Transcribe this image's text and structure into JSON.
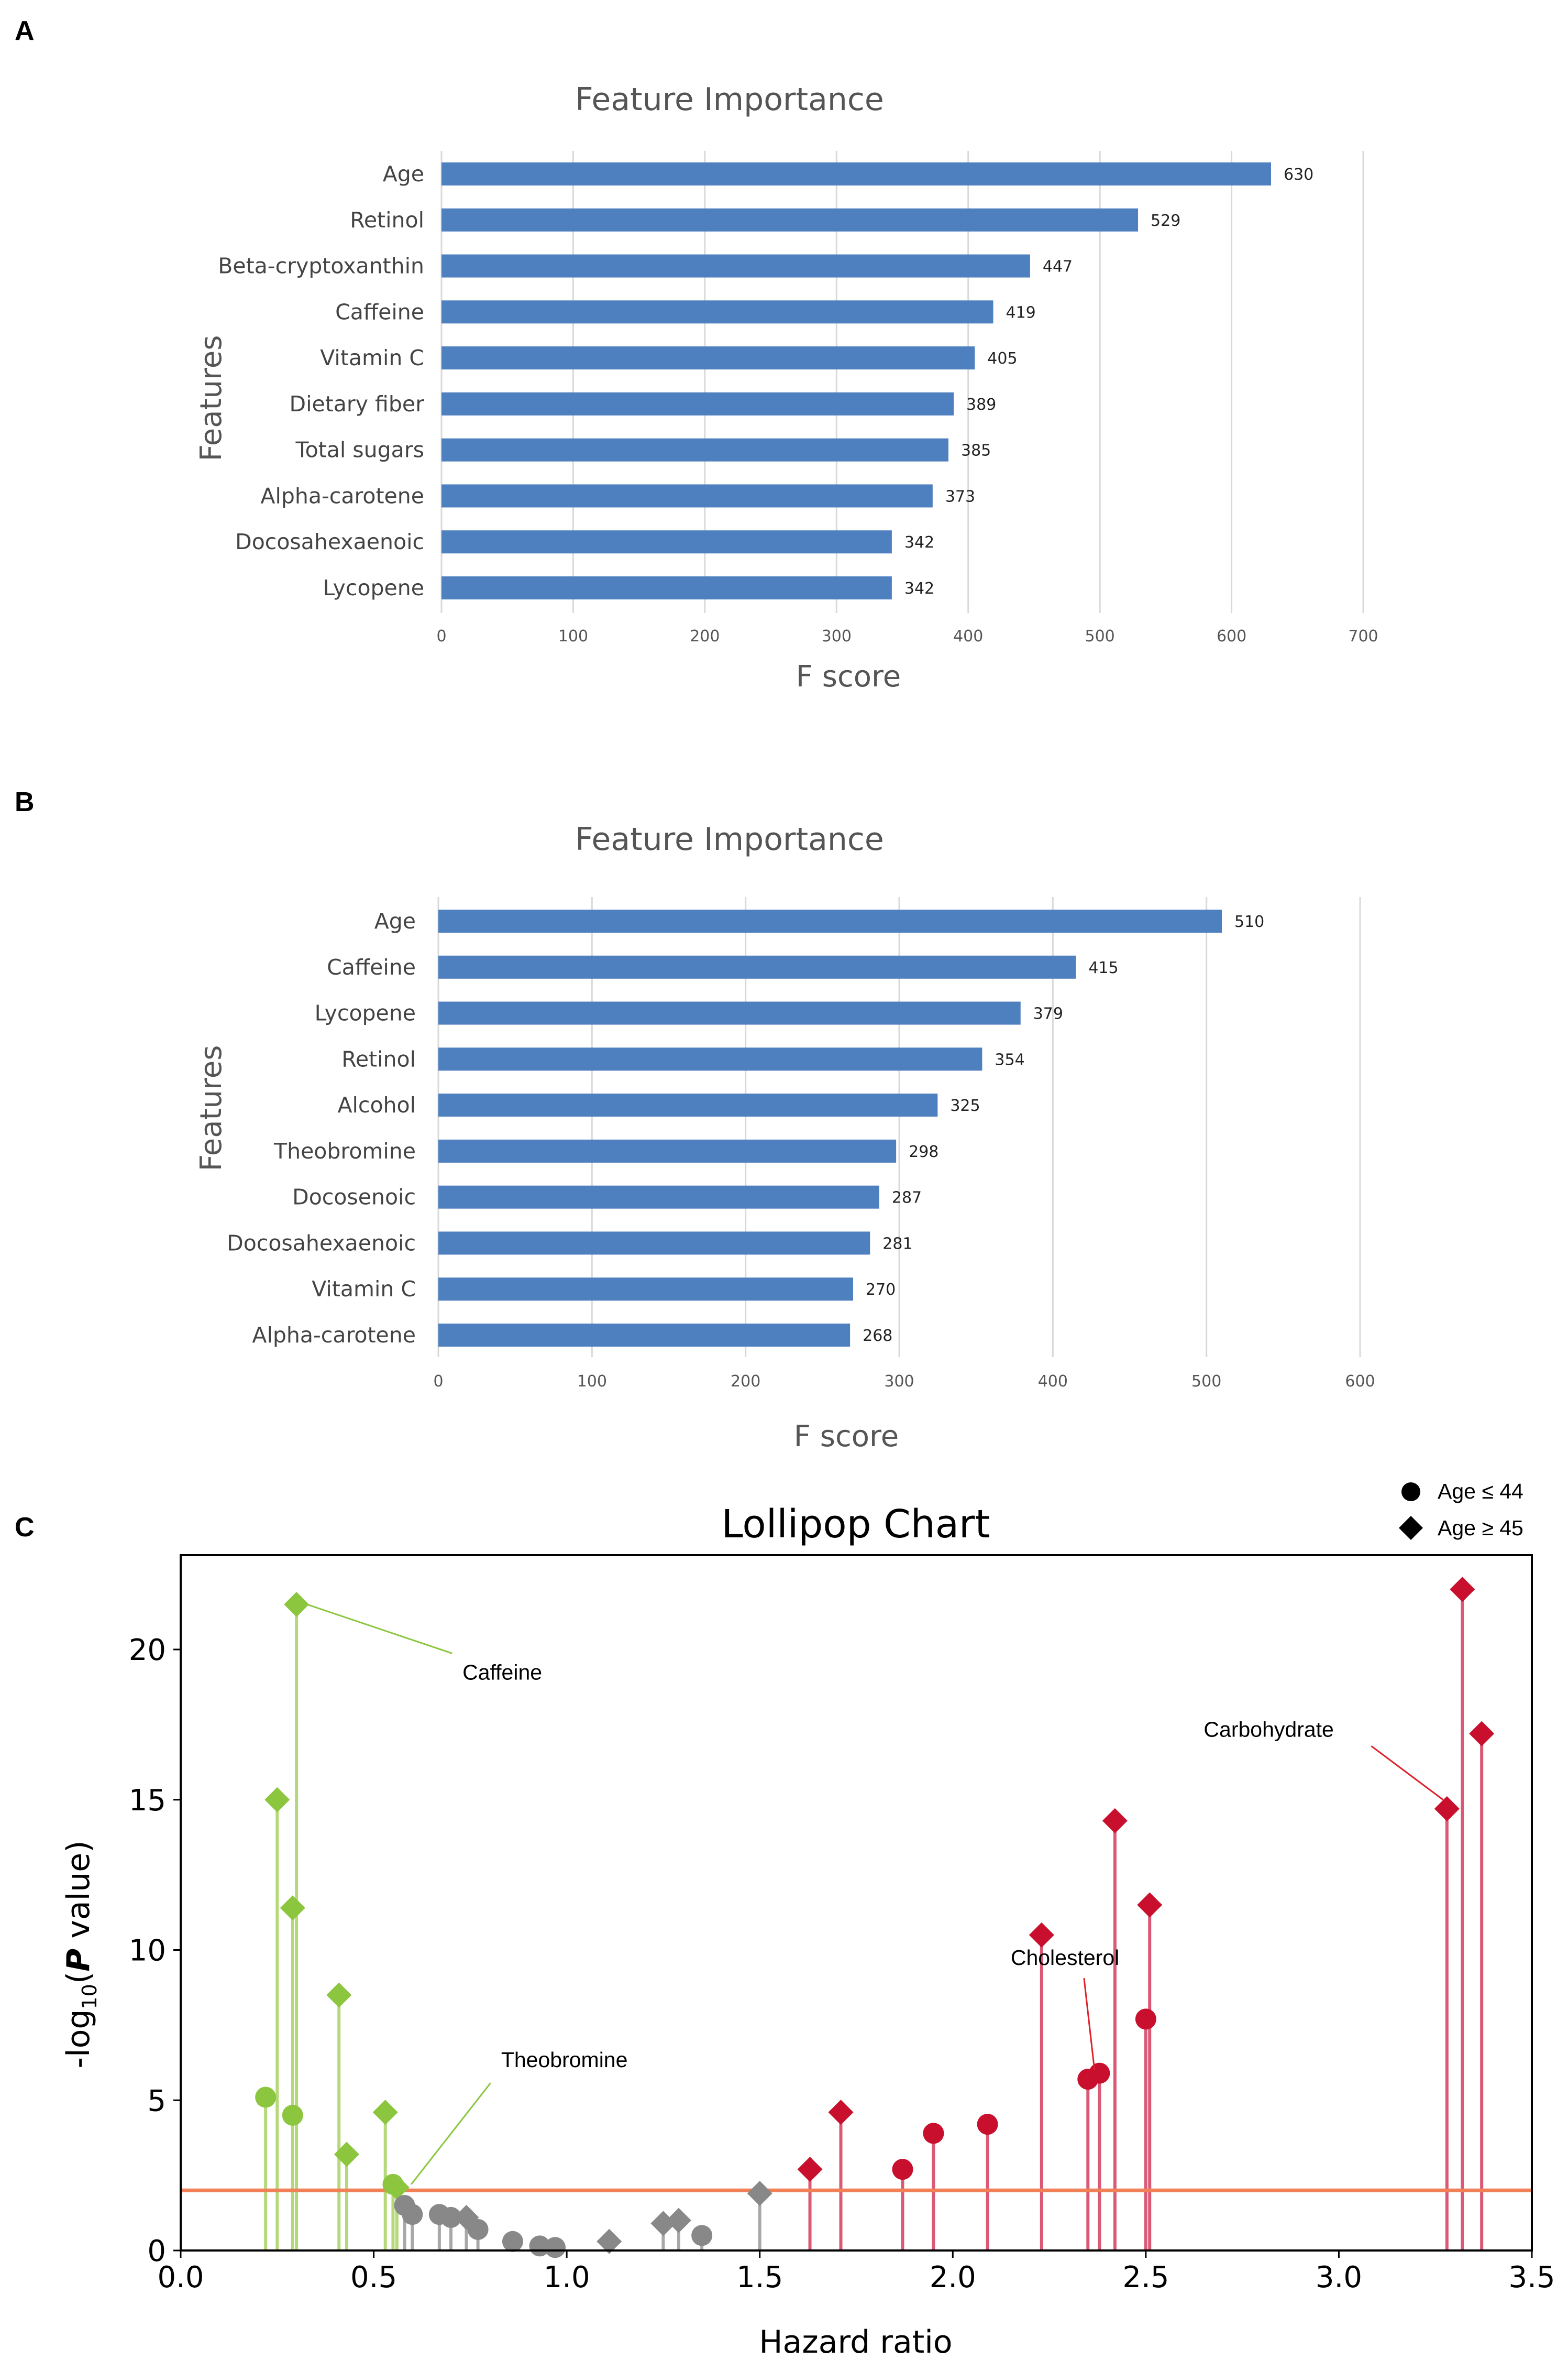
{
  "chart_data": [
    {
      "panel": "A",
      "type": "bar",
      "orientation": "horizontal",
      "title": "Feature Importance",
      "xlabel": "F score",
      "ylabel": "Features",
      "categories": [
        "Age",
        "Retinol",
        "Beta-cryptoxanthin",
        "Caffeine",
        "Vitamin C",
        "Dietary fiber",
        "Total sugars",
        "Alpha-carotene",
        "Docosahexaenoic",
        "Lycopene"
      ],
      "values": [
        630,
        529,
        447,
        419,
        405,
        389,
        385,
        373,
        342,
        342
      ],
      "value_labels": [
        "630",
        "529",
        "447",
        "419",
        "405",
        "389",
        "385",
        "373",
        "342",
        "342"
      ],
      "xlim": [
        0,
        700
      ],
      "xticks": [
        "0",
        "100",
        "200",
        "300",
        "400",
        "500",
        "600",
        "700"
      ],
      "grid": "vertical",
      "color": "#4E7FBF"
    },
    {
      "panel": "B",
      "type": "bar",
      "orientation": "horizontal",
      "title": "Feature Importance",
      "xlabel": "F score",
      "ylabel": "Features",
      "categories": [
        "Age",
        "Caffeine",
        "Lycopene",
        "Retinol",
        "Alcohol",
        "Theobromine",
        "Docosenoic",
        "Docosahexaenoic",
        "Vitamin C",
        "Alpha-carotene"
      ],
      "values": [
        510,
        415,
        379,
        354,
        325,
        298,
        287,
        281,
        270,
        268
      ],
      "value_labels": [
        "510",
        "415",
        "379",
        "354",
        "325",
        "298",
        "287",
        "281",
        "270",
        "268"
      ],
      "xlim": [
        0,
        600
      ],
      "xticks": [
        "0",
        "100",
        "200",
        "300",
        "400",
        "500",
        "600"
      ],
      "grid": "vertical",
      "color": "#4E7FBF"
    },
    {
      "panel": "C",
      "type": "scatter",
      "subtype": "lollipop",
      "title": "Lollipop Chart",
      "xlabel": "Hazard ratio",
      "ylabel_parts": [
        "-log",
        "10",
        "(",
        "P",
        " value)"
      ],
      "xlim": [
        0,
        3.5
      ],
      "ylim": [
        0,
        23
      ],
      "xticks": [
        "0.0",
        "0.5",
        "1.0",
        "1.5",
        "2.0",
        "2.5",
        "3.0",
        "3.5"
      ],
      "yticks": [
        "0",
        "5",
        "10",
        "15",
        "20"
      ],
      "threshold_y": 2.0,
      "threshold_color": "#F08058",
      "legend": [
        {
          "label": "Age ≤ 44",
          "marker": "circle"
        },
        {
          "label": "Age ≥ 45",
          "marker": "diamond"
        }
      ],
      "legend_position": "above-right",
      "colors": {
        "protective": "#8CC63F",
        "protective_stem": "#B5D97A",
        "neutral": "#888888",
        "neutral_stem": "#A8A8A8",
        "risk": "#C8102E",
        "risk_stem": "#DA5A76"
      },
      "points": [
        {
          "x": 0.22,
          "y": 5.1,
          "marker": "circle",
          "group": "protective"
        },
        {
          "x": 0.25,
          "y": 15.0,
          "marker": "diamond",
          "group": "protective"
        },
        {
          "x": 0.29,
          "y": 4.5,
          "marker": "circle",
          "group": "protective"
        },
        {
          "x": 0.29,
          "y": 11.4,
          "marker": "diamond",
          "group": "protective"
        },
        {
          "x": 0.3,
          "y": 21.5,
          "marker": "diamond",
          "group": "protective"
        },
        {
          "x": 0.41,
          "y": 8.5,
          "marker": "diamond",
          "group": "protective"
        },
        {
          "x": 0.43,
          "y": 3.2,
          "marker": "diamond",
          "group": "protective"
        },
        {
          "x": 0.53,
          "y": 4.6,
          "marker": "diamond",
          "group": "protective"
        },
        {
          "x": 0.55,
          "y": 2.2,
          "marker": "circle",
          "group": "protective"
        },
        {
          "x": 0.56,
          "y": 2.1,
          "marker": "diamond",
          "group": "protective"
        },
        {
          "x": 0.58,
          "y": 1.5,
          "marker": "circle",
          "group": "neutral"
        },
        {
          "x": 0.6,
          "y": 1.2,
          "marker": "circle",
          "group": "neutral"
        },
        {
          "x": 0.67,
          "y": 1.2,
          "marker": "circle",
          "group": "neutral"
        },
        {
          "x": 0.7,
          "y": 1.1,
          "marker": "circle",
          "group": "neutral"
        },
        {
          "x": 0.74,
          "y": 1.1,
          "marker": "diamond",
          "group": "neutral"
        },
        {
          "x": 0.77,
          "y": 0.7,
          "marker": "circle",
          "group": "neutral"
        },
        {
          "x": 0.86,
          "y": 0.3,
          "marker": "circle",
          "group": "neutral"
        },
        {
          "x": 0.93,
          "y": 0.15,
          "marker": "circle",
          "group": "neutral"
        },
        {
          "x": 0.97,
          "y": 0.1,
          "marker": "circle",
          "group": "neutral"
        },
        {
          "x": 1.11,
          "y": 0.3,
          "marker": "diamond",
          "group": "neutral"
        },
        {
          "x": 1.25,
          "y": 0.9,
          "marker": "diamond",
          "group": "neutral"
        },
        {
          "x": 1.29,
          "y": 1.0,
          "marker": "diamond",
          "group": "neutral"
        },
        {
          "x": 1.35,
          "y": 0.5,
          "marker": "circle",
          "group": "neutral"
        },
        {
          "x": 1.5,
          "y": 1.9,
          "marker": "diamond",
          "group": "neutral"
        },
        {
          "x": 1.63,
          "y": 2.7,
          "marker": "diamond",
          "group": "risk"
        },
        {
          "x": 1.71,
          "y": 4.6,
          "marker": "diamond",
          "group": "risk"
        },
        {
          "x": 1.87,
          "y": 2.7,
          "marker": "circle",
          "group": "risk"
        },
        {
          "x": 1.95,
          "y": 3.9,
          "marker": "circle",
          "group": "risk"
        },
        {
          "x": 2.09,
          "y": 4.2,
          "marker": "circle",
          "group": "risk"
        },
        {
          "x": 2.23,
          "y": 10.5,
          "marker": "diamond",
          "group": "risk"
        },
        {
          "x": 2.35,
          "y": 5.7,
          "marker": "circle",
          "group": "risk"
        },
        {
          "x": 2.38,
          "y": 5.9,
          "marker": "circle",
          "group": "risk"
        },
        {
          "x": 2.42,
          "y": 14.3,
          "marker": "diamond",
          "group": "risk"
        },
        {
          "x": 2.5,
          "y": 7.7,
          "marker": "circle",
          "group": "risk"
        },
        {
          "x": 2.51,
          "y": 11.5,
          "marker": "diamond",
          "group": "risk"
        },
        {
          "x": 3.28,
          "y": 14.7,
          "marker": "diamond",
          "group": "risk"
        },
        {
          "x": 3.32,
          "y": 22.0,
          "marker": "diamond",
          "group": "risk"
        },
        {
          "x": 3.37,
          "y": 17.2,
          "marker": "diamond",
          "group": "risk"
        }
      ],
      "annotations": [
        {
          "text": "Caffeine",
          "point_x": 0.3,
          "point_y": 21.5,
          "text_x": 0.73,
          "text_y": 19.0,
          "color": "#8CC63F"
        },
        {
          "text": "Theobromine",
          "point_x": 0.57,
          "point_y": 2.2,
          "text_x": 0.83,
          "text_y": 6.1,
          "color": "#8CC63F"
        },
        {
          "text": "Carbohydrate",
          "point_x": 3.27,
          "point_y": 15.0,
          "text_x": 2.65,
          "text_y": 17.1,
          "color": "#E0202A"
        },
        {
          "text": "Cholesterol",
          "point_x": 2.34,
          "point_y": 6.0,
          "text_x": 2.15,
          "text_y": 9.5,
          "color": "#E0202A"
        }
      ]
    }
  ],
  "panel_labels": [
    "A",
    "B",
    "C"
  ]
}
